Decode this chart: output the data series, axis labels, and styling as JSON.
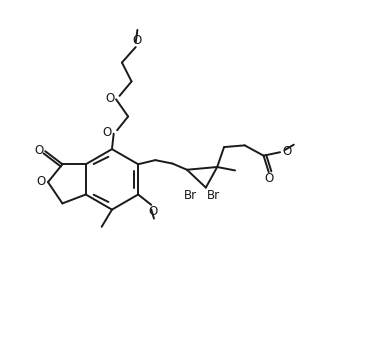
{
  "bg_color": "#ffffff",
  "line_color": "#1a1a1a",
  "line_width": 1.4,
  "font_size": 8.5,
  "figsize": [
    3.82,
    3.45
  ],
  "dpi": 100,
  "xlim": [
    0,
    11
  ],
  "ylim": [
    0,
    10
  ]
}
